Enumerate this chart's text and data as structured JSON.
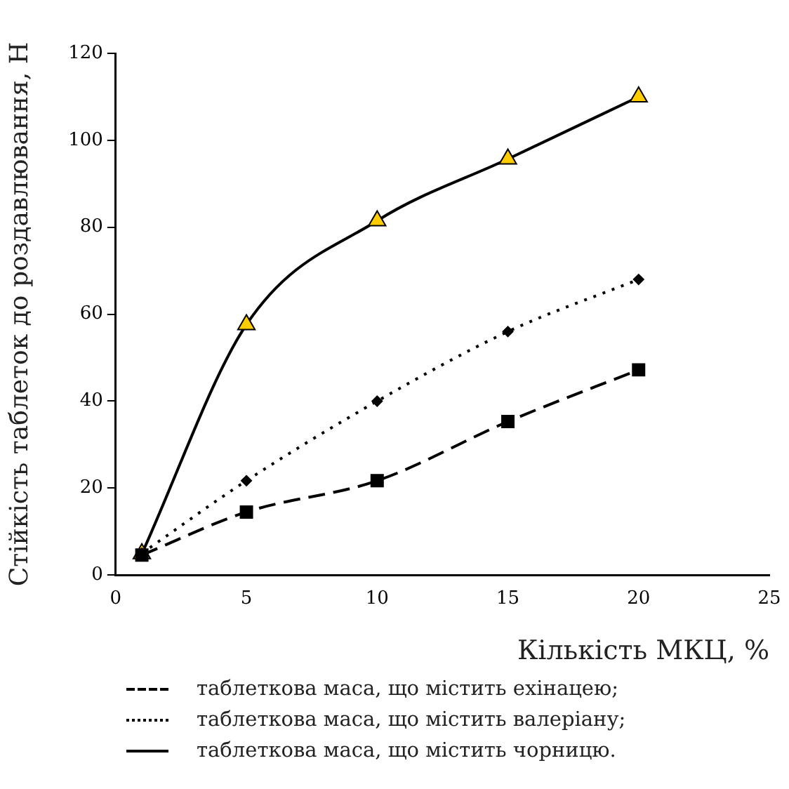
{
  "chart_data": {
    "type": "line",
    "xlabel": "Кількість МКЦ, %",
    "ylabel": "Стійкість таблеток до роздавлювання, Н",
    "x": [
      1,
      5,
      10,
      15,
      20
    ],
    "series": [
      {
        "name": "таблеткова маса, що містить ехінацею;",
        "color": "#000000",
        "values": [
          4.6,
          14.5,
          21.7,
          35.3,
          47.2
        ],
        "marker": "square",
        "line_style": "dashed"
      },
      {
        "name": "таблеткова маса, що містить валеріану;",
        "color": "#000000",
        "values": [
          5,
          21.7,
          40,
          56,
          68
        ],
        "marker": "diamond",
        "line_style": "dotted"
      },
      {
        "name": "таблеткова маса, що містить чорницю.",
        "color": "#ffcc00",
        "values": [
          4.9,
          57.6,
          81.5,
          95.7,
          110
        ],
        "marker": "triangle",
        "line_style": "solid"
      }
    ],
    "xlim": [
      0,
      25
    ],
    "xticks": [
      0,
      5,
      10,
      15,
      20,
      25
    ],
    "ylim": [
      0,
      120
    ],
    "yticks": [
      0,
      20,
      40,
      60,
      80,
      100,
      120
    ],
    "grid": false,
    "legend": "bottom"
  }
}
